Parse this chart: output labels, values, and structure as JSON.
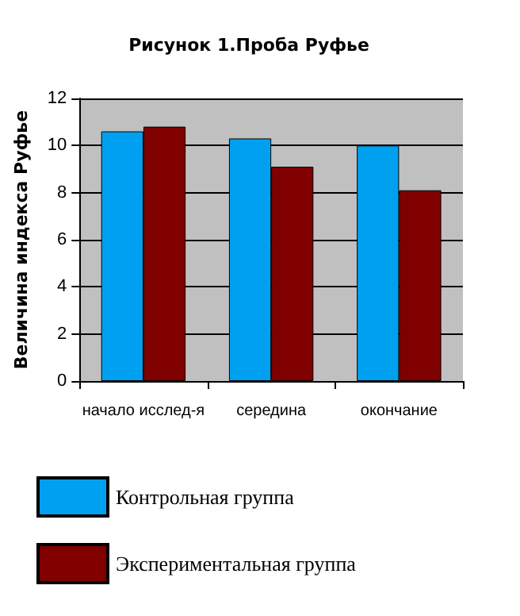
{
  "chart_data": {
    "type": "bar",
    "title": "Рисунок 1.Проба Руфье",
    "ylabel": "Величина индекса Руфье",
    "categories": [
      "начало исслед-я",
      "середина",
      "окончание"
    ],
    "series": [
      {
        "name": "Контрольная группа",
        "color": "#00a0f0",
        "values": [
          10.6,
          10.3,
          10.0
        ]
      },
      {
        "name": "Экспериментальная группа",
        "color": "#800000",
        "values": [
          10.8,
          9.1,
          8.1
        ]
      }
    ],
    "ylim": [
      0,
      12
    ],
    "yticks": [
      0,
      2,
      4,
      6,
      8,
      10,
      12
    ],
    "grid": "y",
    "legend": "bottom"
  }
}
